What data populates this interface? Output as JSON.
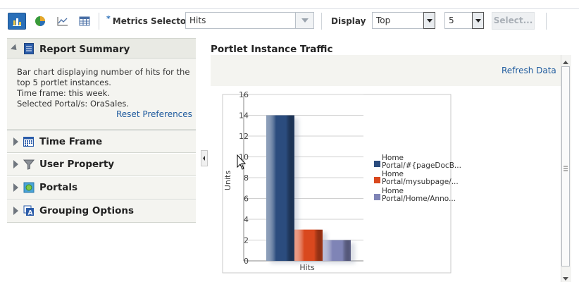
{
  "toolbar": {
    "icons": [
      "bar-chart-icon",
      "pie-chart-icon",
      "line-chart-icon",
      "table-icon"
    ],
    "metrics_label": "Metrics Selector",
    "metrics_value": "Hits",
    "display_label": "Display",
    "display_value": "Top",
    "count_value": "5",
    "select_button": "Select..."
  },
  "sidebar": {
    "summary": {
      "title": "Report Summary",
      "lines": [
        "Bar chart displaying number of hits for the",
        "top 5 portlet instances.",
        "Time frame: this week.",
        "Selected Portal/s: OraSales."
      ],
      "reset_link": "Reset Preferences"
    },
    "sections": [
      {
        "title": "Time Frame",
        "icon": "calendar-icon"
      },
      {
        "title": "User Property",
        "icon": "filter-icon"
      },
      {
        "title": "Portals",
        "icon": "portal-icon"
      },
      {
        "title": "Grouping Options",
        "icon": "grouping-icon"
      }
    ]
  },
  "main": {
    "title": "Portlet Instance Traffic",
    "refresh_link": "Refresh Data"
  },
  "chart_data": {
    "type": "bar",
    "categories": [
      "Hits"
    ],
    "series": [
      {
        "name": "Home Portal/#{pageDocB...",
        "values": [
          14
        ],
        "color": "#2b4c7e"
      },
      {
        "name": "Home Portal/mysubpage/...",
        "values": [
          3
        ],
        "color": "#d9481e"
      },
      {
        "name": "Home Portal/Home/Anno...",
        "values": [
          2
        ],
        "color": "#7f84b6"
      }
    ],
    "xlabel": "Hits",
    "ylabel": "Units",
    "ylim": [
      0,
      16
    ],
    "yticks": [
      "0",
      "2",
      "4",
      "6",
      "8",
      "10",
      "12",
      "14",
      "16"
    ],
    "legend_lines": [
      [
        "Home",
        "Portal/#{pageDocB..."
      ],
      [
        "Home",
        "Portal/mysubpage/..."
      ],
      [
        "Home",
        "Portal/Home/Anno..."
      ]
    ],
    "grid": true,
    "legend_position": "right"
  }
}
